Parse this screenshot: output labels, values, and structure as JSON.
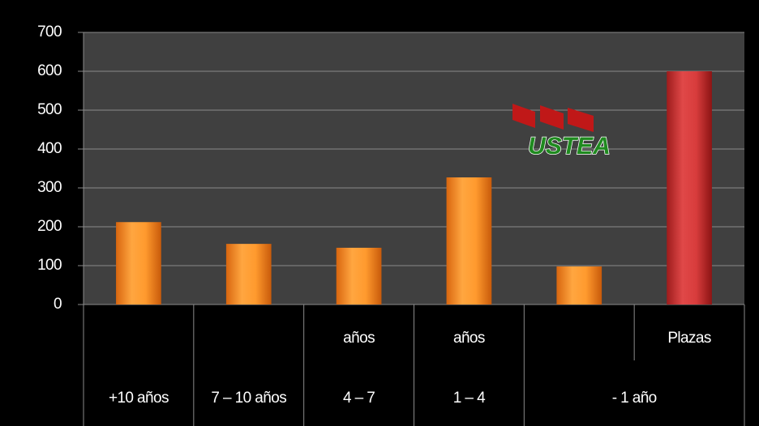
{
  "chart_data": {
    "type": "bar",
    "logo": "USTEA",
    "categories": [
      null,
      null,
      "años",
      "años",
      null,
      "Plazas"
    ],
    "category_groups": [
      {
        "label": "+10 años",
        "span": 1
      },
      {
        "label": "7 – 10 años",
        "span": 1
      },
      {
        "label": "4 – 7",
        "span": 1
      },
      {
        "label": "1 – 4",
        "span": 1
      },
      {
        "label": "- 1 año",
        "span": 2
      }
    ],
    "values": [
      212,
      156,
      146,
      327,
      98,
      600
    ],
    "colors": [
      "orange",
      "orange",
      "orange",
      "orange",
      "orange",
      "red"
    ],
    "ylim": [
      0,
      700
    ],
    "yticks": [
      0,
      100,
      200,
      300,
      400,
      500,
      600,
      700
    ],
    "grid": true
  }
}
